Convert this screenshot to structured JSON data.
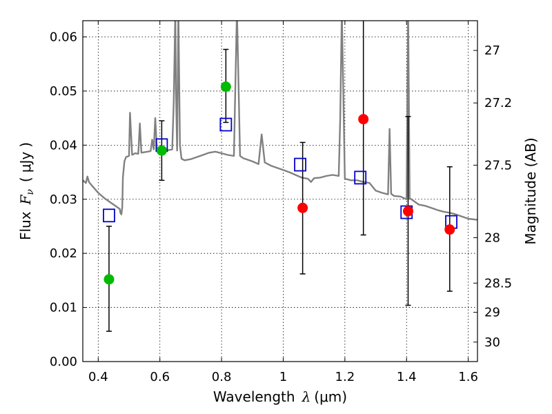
{
  "chart_data": {
    "type": "scatter",
    "xlabel": {
      "text": "Wavelength",
      "symbol": "λ",
      "unit": "(μm)"
    },
    "ylabel": {
      "text": "Flux",
      "symbol": "F",
      "sub": "ν",
      "open": "(",
      "unit": "μJy",
      "close": ")"
    },
    "y2label": "Magnitude (AB)",
    "xlim": [
      0.35,
      1.63
    ],
    "ylim": [
      0.0,
      0.063
    ],
    "grid": true,
    "x_ticks": [
      0.4,
      0.6,
      0.8,
      1.0,
      1.2,
      1.4,
      1.6
    ],
    "x_tick_labels": [
      "0.4",
      "0.6",
      "0.8",
      "1",
      "1.2",
      "1.4",
      "1.6"
    ],
    "y_ticks": [
      0.0,
      0.01,
      0.02,
      0.03,
      0.04,
      0.05,
      0.06
    ],
    "y_tick_labels": [
      "0.00",
      "0.01",
      "0.02",
      "0.03",
      "0.04",
      "0.05",
      "0.06"
    ],
    "y2_ticks": [
      {
        "label": "27",
        "flux": 0.0575
      },
      {
        "label": "27.2",
        "flux": 0.0478
      },
      {
        "label": "27.5",
        "flux": 0.0363
      },
      {
        "label": "28",
        "flux": 0.0229
      },
      {
        "label": "28.5",
        "flux": 0.0145
      },
      {
        "label": "29",
        "flux": 0.0091
      },
      {
        "label": "30",
        "flux": 0.0036
      }
    ],
    "model_spectrum": {
      "color": "#808080",
      "x": [
        0.35,
        0.36,
        0.365,
        0.37,
        0.38,
        0.4,
        0.42,
        0.44,
        0.46,
        0.47,
        0.472,
        0.475,
        0.478,
        0.48,
        0.485,
        0.49,
        0.5,
        0.503,
        0.51,
        0.52,
        0.53,
        0.535,
        0.54,
        0.56,
        0.57,
        0.575,
        0.58,
        0.585,
        0.59,
        0.6,
        0.62,
        0.64,
        0.645,
        0.65,
        0.652,
        0.656,
        0.66,
        0.665,
        0.67,
        0.68,
        0.7,
        0.72,
        0.74,
        0.76,
        0.78,
        0.8,
        0.82,
        0.84,
        0.85,
        0.86,
        0.87,
        0.88,
        0.9,
        0.92,
        0.93,
        0.94,
        0.96,
        0.98,
        1.0,
        1.02,
        1.04,
        1.06,
        1.08,
        1.09,
        1.1,
        1.12,
        1.14,
        1.16,
        1.18,
        1.185,
        1.19,
        1.2,
        1.22,
        1.24,
        1.26,
        1.28,
        1.3,
        1.32,
        1.34,
        1.345,
        1.35,
        1.36,
        1.38,
        1.4,
        1.405,
        1.41,
        1.42,
        1.44,
        1.46,
        1.48,
        1.5,
        1.52,
        1.54,
        1.56,
        1.58,
        1.6,
        1.63
      ],
      "y": [
        0.0335,
        0.033,
        0.0342,
        0.0332,
        0.0325,
        0.0312,
        0.0302,
        0.0294,
        0.0286,
        0.0282,
        0.0275,
        0.0272,
        0.0285,
        0.034,
        0.037,
        0.0378,
        0.038,
        0.046,
        0.0382,
        0.0385,
        0.0384,
        0.044,
        0.0386,
        0.0388,
        0.0389,
        0.041,
        0.0392,
        0.045,
        0.0395,
        0.0392,
        0.039,
        0.0392,
        0.048,
        0.065,
        0.05,
        0.039,
        0.065,
        0.04,
        0.0375,
        0.0372,
        0.0374,
        0.0378,
        0.0382,
        0.0386,
        0.0388,
        0.0385,
        0.0382,
        0.038,
        0.065,
        0.038,
        0.0376,
        0.0374,
        0.037,
        0.0365,
        0.042,
        0.0368,
        0.0362,
        0.0358,
        0.0354,
        0.035,
        0.0345,
        0.034,
        0.0338,
        0.0332,
        0.0339,
        0.034,
        0.0343,
        0.0345,
        0.0343,
        0.045,
        0.065,
        0.0338,
        0.0335,
        0.0335,
        0.0332,
        0.033,
        0.0316,
        0.0312,
        0.0309,
        0.043,
        0.031,
        0.0306,
        0.0305,
        0.03,
        0.065,
        0.0302,
        0.0298,
        0.029,
        0.0288,
        0.0284,
        0.028,
        0.0277,
        0.0275,
        0.0272,
        0.0268,
        0.0264,
        0.0262
      ]
    },
    "model_bands": {
      "color": "#0000cc",
      "x": [
        0.435,
        0.606,
        0.814,
        1.055,
        1.25,
        1.4,
        1.545
      ],
      "y": [
        0.027,
        0.04,
        0.0438,
        0.0364,
        0.034,
        0.0276,
        0.0258
      ]
    },
    "detections": {
      "color": "#ff0000",
      "x": [
        1.063,
        1.26,
        1.405,
        1.54
      ],
      "y": [
        0.0284,
        0.0448,
        0.0278,
        0.0244
      ],
      "err": [
        [
          0.0162,
          0.0405
        ],
        [
          0.0234,
          0.064
        ],
        [
          0.0104,
          0.0453
        ],
        [
          0.013,
          0.036
        ]
      ]
    },
    "upper_limits": {
      "color": "#00bb00",
      "x": [
        0.435,
        0.606,
        0.814
      ],
      "y": [
        0.0152,
        0.039,
        0.0508
      ],
      "err": [
        [
          0.0056,
          0.025
        ],
        [
          0.0335,
          0.0445
        ],
        [
          0.0442,
          0.0577
        ]
      ]
    }
  }
}
